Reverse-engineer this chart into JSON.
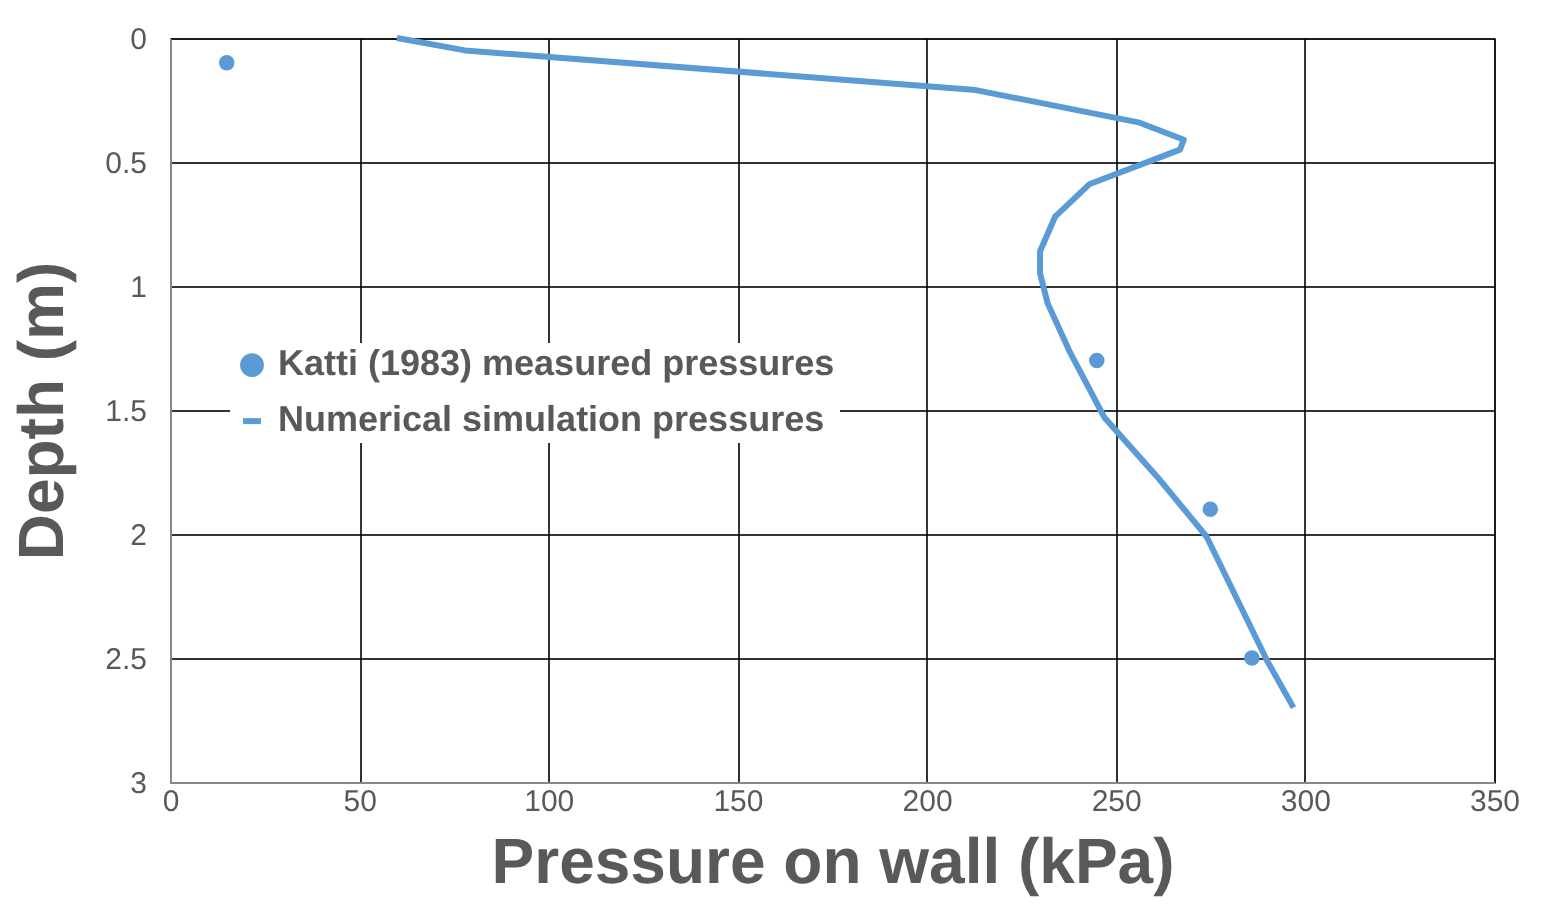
{
  "chart_data": {
    "type": "line",
    "xlabel": "Pressure on wall (kPa)",
    "ylabel": "Depth (m)",
    "xlim": [
      0,
      350
    ],
    "xticks": [
      0,
      50,
      100,
      150,
      200,
      250,
      300,
      350
    ],
    "ylim": [
      3,
      0
    ],
    "yticks": [
      0,
      0.5,
      1,
      1.5,
      2,
      2.5,
      3
    ],
    "grid": true,
    "legend": "left",
    "series": [
      {
        "name": "Katti (1983) measured pressures",
        "type": "scatter",
        "marker": "circle",
        "color": "#5b9bd5",
        "x": [
          15,
          245,
          275,
          286
        ],
        "values": [
          0.1,
          1.3,
          1.9,
          2.5
        ]
      },
      {
        "name": "Numerical simulation pressures",
        "marker": "none",
        "color": "#5b9bd5",
        "x": [
          60,
          78,
          213,
          256,
          268,
          267,
          243,
          234,
          230,
          230,
          232,
          238,
          247,
          261,
          274,
          290,
          297
        ],
        "values": [
          0,
          0.05,
          0.21,
          0.34,
          0.41,
          0.45,
          0.59,
          0.72,
          0.86,
          0.95,
          1.07,
          1.27,
          1.53,
          1.77,
          2.01,
          2.51,
          2.7
        ]
      }
    ]
  }
}
